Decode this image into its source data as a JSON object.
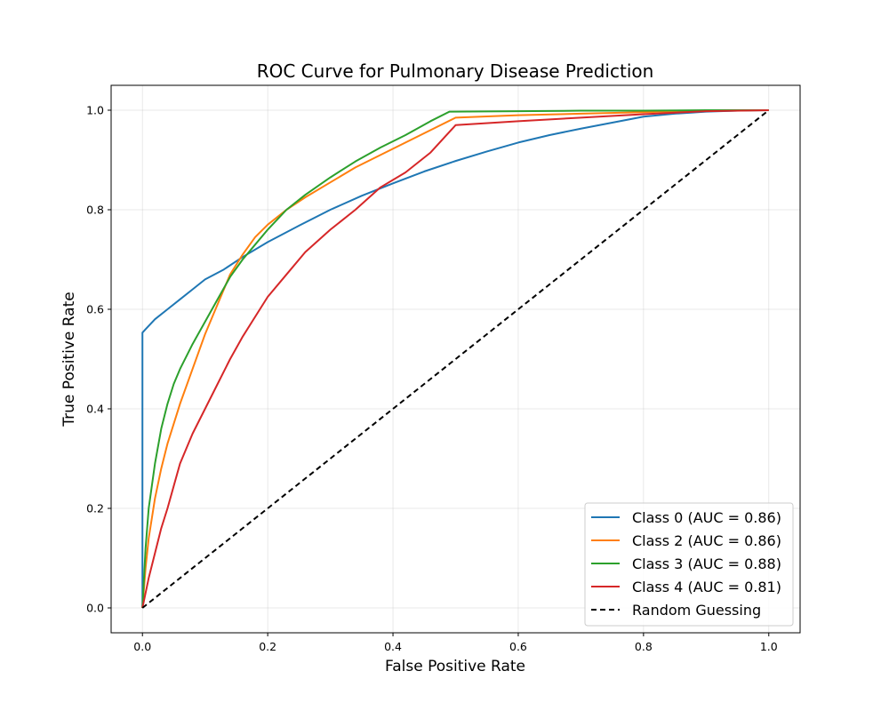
{
  "chart_data": {
    "type": "line",
    "title": "ROC Curve for Pulmonary Disease Prediction",
    "xlabel": "False Positive Rate",
    "ylabel": "True Positive Rate",
    "xlim": [
      -0.05,
      1.05
    ],
    "ylim": [
      -0.05,
      1.05
    ],
    "xticks": [
      0.0,
      0.2,
      0.4,
      0.6,
      0.8,
      1.0
    ],
    "yticks": [
      0.0,
      0.2,
      0.4,
      0.6,
      0.8,
      1.0
    ],
    "xtick_labels": [
      "0.0",
      "0.2",
      "0.4",
      "0.6",
      "0.8",
      "1.0"
    ],
    "ytick_labels": [
      "0.0",
      "0.2",
      "0.4",
      "0.6",
      "0.8",
      "1.0"
    ],
    "grid": true,
    "legend_position": "lower-right",
    "series": [
      {
        "name": "Class 0 (AUC = 0.86)",
        "color": "#1f77b4",
        "dashed": false,
        "x": [
          0.0,
          0.0,
          0.0,
          0.005,
          0.02,
          0.04,
          0.06,
          0.08,
          0.1,
          0.13,
          0.16,
          0.2,
          0.25,
          0.3,
          0.35,
          0.4,
          0.45,
          0.5,
          0.55,
          0.6,
          0.65,
          0.7,
          0.75,
          0.8,
          0.85,
          0.9,
          0.95,
          1.0
        ],
        "y": [
          0.0,
          0.3,
          0.553,
          0.56,
          0.58,
          0.6,
          0.62,
          0.64,
          0.66,
          0.68,
          0.705,
          0.735,
          0.768,
          0.8,
          0.828,
          0.853,
          0.877,
          0.898,
          0.917,
          0.935,
          0.95,
          0.963,
          0.975,
          0.987,
          0.993,
          0.997,
          0.999,
          1.0
        ]
      },
      {
        "name": "Class 2 (AUC = 0.86)",
        "color": "#ff7f0e",
        "dashed": false,
        "x": [
          0.0,
          0.005,
          0.01,
          0.02,
          0.03,
          0.04,
          0.06,
          0.08,
          0.1,
          0.12,
          0.14,
          0.16,
          0.18,
          0.2,
          0.23,
          0.26,
          0.3,
          0.34,
          0.38,
          0.42,
          0.46,
          0.5,
          0.6,
          0.7,
          0.8,
          0.9,
          1.0
        ],
        "y": [
          0.0,
          0.08,
          0.14,
          0.22,
          0.28,
          0.33,
          0.41,
          0.48,
          0.55,
          0.61,
          0.67,
          0.71,
          0.745,
          0.77,
          0.8,
          0.825,
          0.855,
          0.885,
          0.91,
          0.935,
          0.96,
          0.985,
          0.99,
          0.993,
          0.996,
          0.999,
          1.0
        ]
      },
      {
        "name": "Class 3 (AUC = 0.88)",
        "color": "#2ca02c",
        "dashed": false,
        "x": [
          0.0,
          0.005,
          0.01,
          0.02,
          0.03,
          0.04,
          0.05,
          0.06,
          0.08,
          0.1,
          0.12,
          0.14,
          0.16,
          0.18,
          0.2,
          0.23,
          0.26,
          0.3,
          0.34,
          0.38,
          0.42,
          0.46,
          0.49,
          0.6,
          0.7,
          0.8,
          0.9,
          1.0
        ],
        "y": [
          0.0,
          0.12,
          0.2,
          0.29,
          0.36,
          0.41,
          0.45,
          0.48,
          0.53,
          0.575,
          0.62,
          0.665,
          0.7,
          0.73,
          0.76,
          0.8,
          0.83,
          0.865,
          0.897,
          0.925,
          0.95,
          0.978,
          0.997,
          0.998,
          0.999,
          0.999,
          1.0,
          1.0
        ]
      },
      {
        "name": "Class 4 (AUC = 0.81)",
        "color": "#d62728",
        "dashed": false,
        "x": [
          0.0,
          0.005,
          0.01,
          0.02,
          0.03,
          0.04,
          0.05,
          0.06,
          0.08,
          0.1,
          0.12,
          0.14,
          0.16,
          0.18,
          0.2,
          0.23,
          0.26,
          0.3,
          0.34,
          0.38,
          0.42,
          0.46,
          0.5,
          0.6,
          0.7,
          0.8,
          0.9,
          1.0
        ],
        "y": [
          0.0,
          0.03,
          0.06,
          0.11,
          0.16,
          0.2,
          0.245,
          0.29,
          0.35,
          0.4,
          0.45,
          0.5,
          0.545,
          0.585,
          0.625,
          0.67,
          0.715,
          0.76,
          0.8,
          0.845,
          0.875,
          0.915,
          0.97,
          0.978,
          0.985,
          0.992,
          0.998,
          1.0
        ]
      },
      {
        "name": "Random Guessing",
        "color": "#000000",
        "dashed": true,
        "x": [
          0.0,
          1.0
        ],
        "y": [
          0.0,
          1.0
        ]
      }
    ]
  }
}
